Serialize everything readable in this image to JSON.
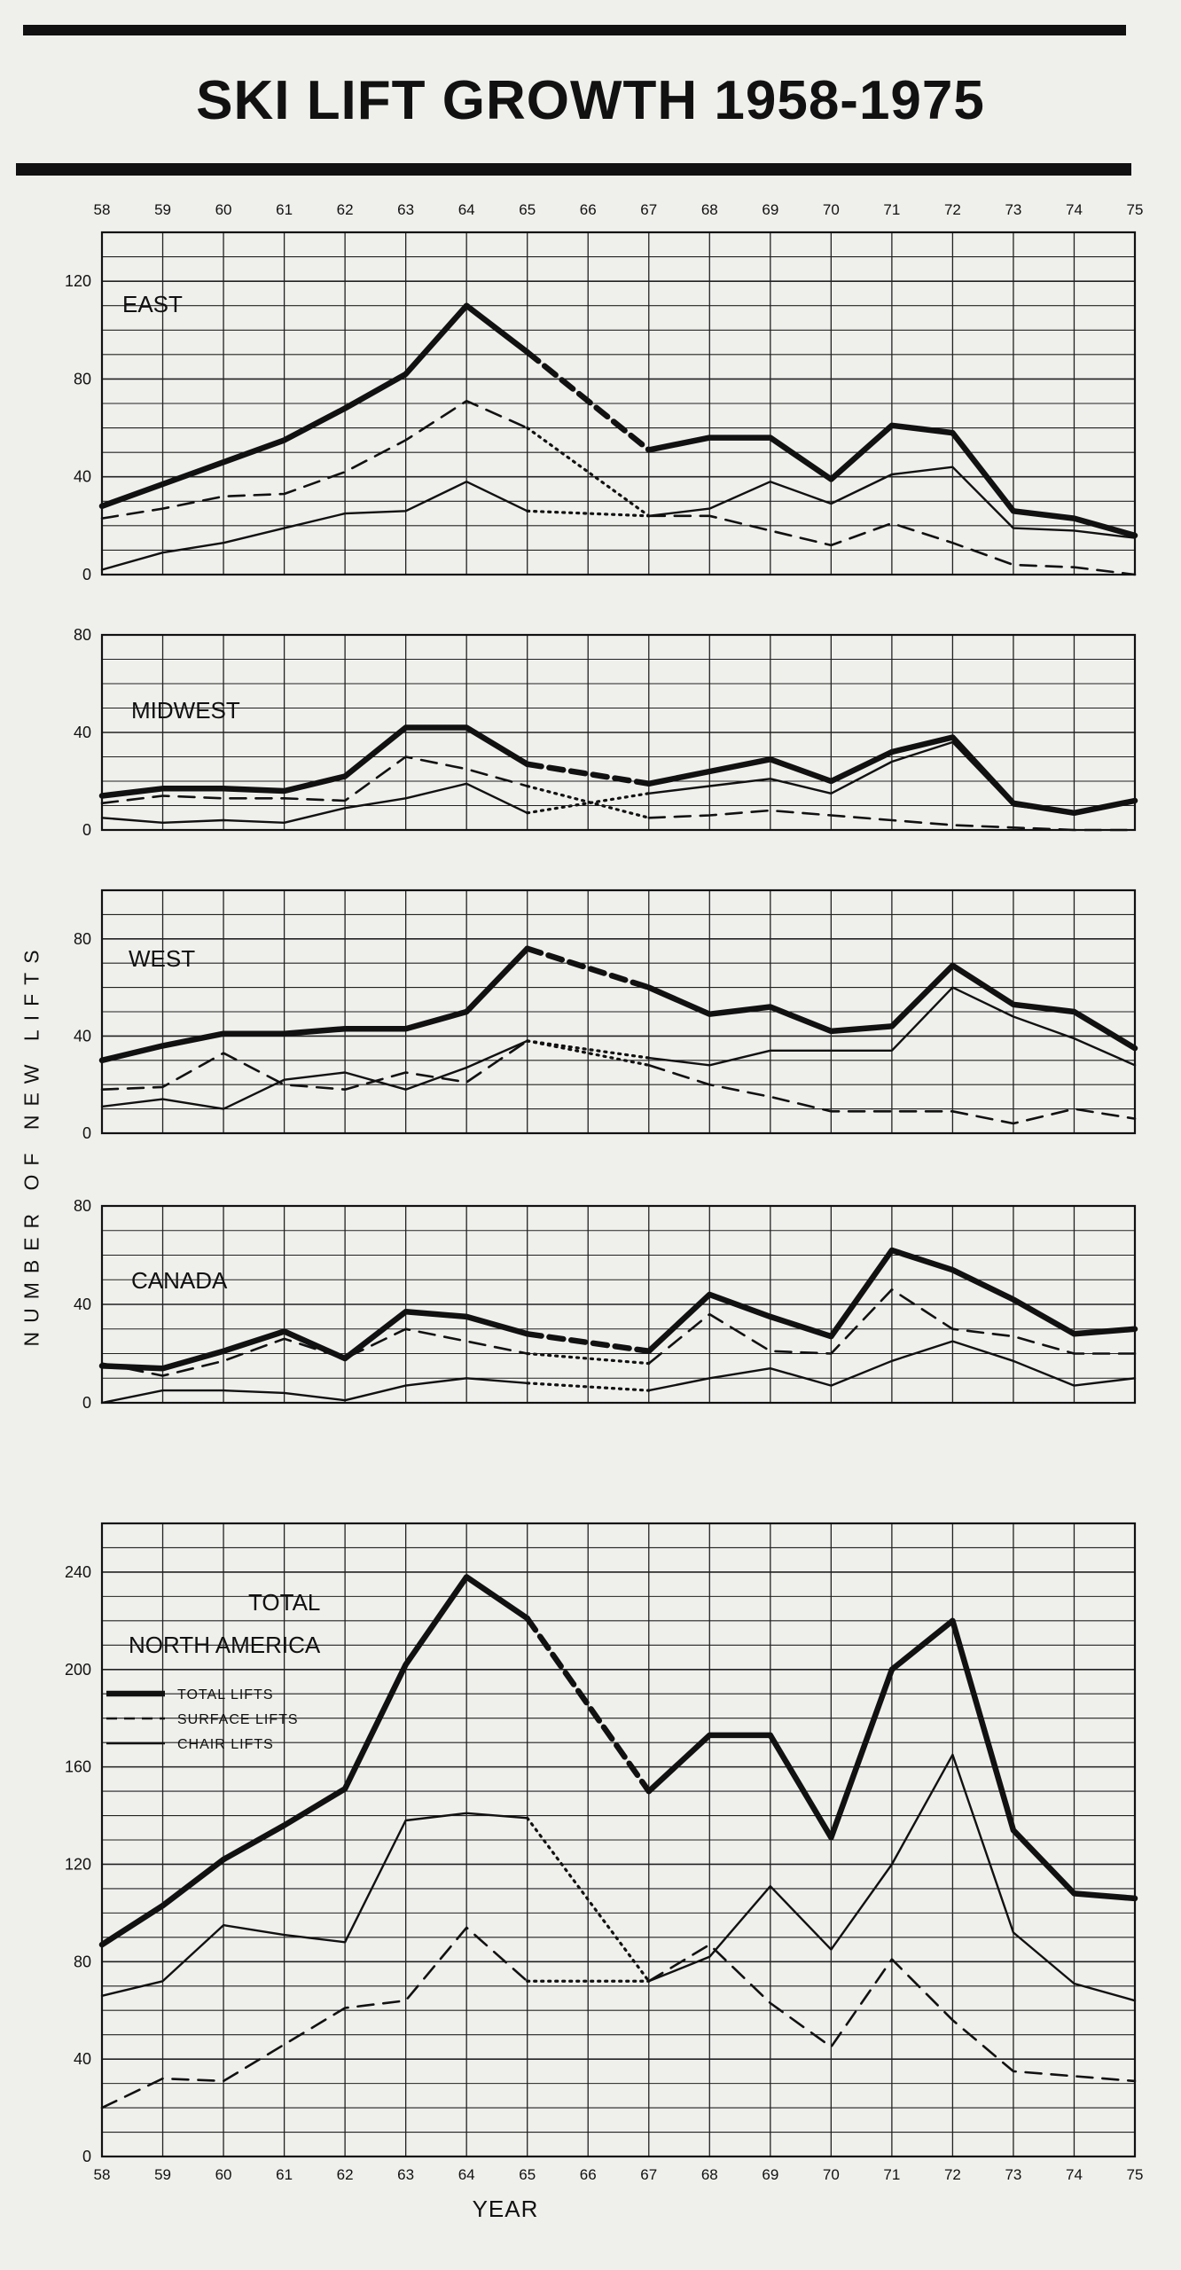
{
  "title": "SKI LIFT  GROWTH 1958-1975",
  "ylabel": "NUMBER   OF   NEW   LIFTS",
  "xlabel": "YEAR",
  "colors": {
    "ink": "#111111",
    "paper": "#efefec",
    "grid": "#222222"
  },
  "chart_data": [
    {
      "type": "line",
      "title": "EAST",
      "x": [
        "58",
        "59",
        "60",
        "61",
        "62",
        "63",
        "64",
        "65",
        "66",
        "67",
        "68",
        "69",
        "70",
        "71",
        "72",
        "73",
        "74",
        "75"
      ],
      "ylim": [
        0,
        140
      ],
      "yticks": [
        "0",
        "40",
        "80",
        "120"
      ],
      "series": [
        {
          "name": "TOTAL LIFTS",
          "values": [
            28,
            37,
            46,
            55,
            68,
            82,
            110,
            91,
            null,
            51,
            56,
            56,
            39,
            61,
            58,
            26,
            23,
            16
          ]
        },
        {
          "name": "SURFACE LIFTS",
          "values": [
            23,
            27,
            32,
            33,
            42,
            55,
            71,
            60,
            null,
            24,
            24,
            18,
            12,
            21,
            13,
            4,
            3,
            0
          ]
        },
        {
          "name": "CHAIR LIFTS",
          "values": [
            2,
            9,
            13,
            19,
            25,
            26,
            38,
            26,
            null,
            24,
            27,
            38,
            29,
            41,
            44,
            19,
            18,
            15
          ]
        }
      ]
    },
    {
      "type": "line",
      "title": "MIDWEST",
      "x": [
        "58",
        "59",
        "60",
        "61",
        "62",
        "63",
        "64",
        "65",
        "66",
        "67",
        "68",
        "69",
        "70",
        "71",
        "72",
        "73",
        "74",
        "75"
      ],
      "ylim": [
        0,
        80
      ],
      "yticks": [
        "0",
        "40",
        "80"
      ],
      "series": [
        {
          "name": "TOTAL LIFTS",
          "values": [
            14,
            17,
            17,
            16,
            22,
            42,
            42,
            27,
            null,
            19,
            24,
            29,
            20,
            32,
            38,
            11,
            7,
            12
          ]
        },
        {
          "name": "SURFACE LIFTS",
          "values": [
            11,
            14,
            13,
            13,
            12,
            30,
            25,
            18,
            null,
            5,
            6,
            8,
            6,
            4,
            2,
            1,
            0,
            0
          ]
        },
        {
          "name": "CHAIR LIFTS",
          "values": [
            5,
            3,
            4,
            3,
            9,
            13,
            19,
            7,
            null,
            15,
            18,
            21,
            15,
            28,
            36,
            10,
            7,
            12
          ]
        }
      ]
    },
    {
      "type": "line",
      "title": "WEST",
      "x": [
        "58",
        "59",
        "60",
        "61",
        "62",
        "63",
        "64",
        "65",
        "66",
        "67",
        "68",
        "69",
        "70",
        "71",
        "72",
        "73",
        "74",
        "75"
      ],
      "ylim": [
        0,
        100
      ],
      "yticks": [
        "0",
        "40",
        "80"
      ],
      "series": [
        {
          "name": "TOTAL LIFTS",
          "values": [
            30,
            36,
            41,
            41,
            43,
            43,
            50,
            76,
            null,
            60,
            49,
            52,
            42,
            44,
            69,
            53,
            50,
            35
          ]
        },
        {
          "name": "SURFACE LIFTS",
          "values": [
            18,
            19,
            33,
            20,
            18,
            25,
            21,
            38,
            null,
            28,
            20,
            15,
            9,
            9,
            9,
            4,
            10,
            6
          ]
        },
        {
          "name": "CHAIR LIFTS",
          "values": [
            11,
            14,
            10,
            22,
            25,
            18,
            27,
            38,
            null,
            31,
            28,
            34,
            34,
            34,
            60,
            48,
            39,
            28
          ]
        }
      ]
    },
    {
      "type": "line",
      "title": "CANADA",
      "x": [
        "58",
        "59",
        "60",
        "61",
        "62",
        "63",
        "64",
        "65",
        "66",
        "67",
        "68",
        "69",
        "70",
        "71",
        "72",
        "73",
        "74",
        "75"
      ],
      "ylim": [
        0,
        80
      ],
      "yticks": [
        "0",
        "40",
        "80"
      ],
      "series": [
        {
          "name": "TOTAL LIFTS",
          "values": [
            15,
            14,
            21,
            29,
            18,
            37,
            35,
            28,
            null,
            21,
            44,
            35,
            27,
            62,
            54,
            42,
            28,
            30
          ]
        },
        {
          "name": "SURFACE LIFTS",
          "values": [
            16,
            11,
            17,
            26,
            18,
            30,
            25,
            20,
            null,
            16,
            36,
            21,
            20,
            46,
            30,
            27,
            20,
            20
          ]
        },
        {
          "name": "CHAIR LIFTS",
          "values": [
            0,
            5,
            5,
            4,
            1,
            7,
            10,
            8,
            null,
            5,
            10,
            14,
            7,
            17,
            25,
            17,
            7,
            10
          ]
        }
      ]
    },
    {
      "type": "line",
      "title": "TOTAL\nNORTH      AMERICA",
      "title_lines": [
        "TOTAL",
        "NORTH      AMERICA"
      ],
      "x": [
        "58",
        "59",
        "60",
        "61",
        "62",
        "63",
        "64",
        "65",
        "66",
        "67",
        "68",
        "69",
        "70",
        "71",
        "72",
        "73",
        "74",
        "75"
      ],
      "ylim": [
        0,
        260
      ],
      "yticks": [
        "0",
        "40",
        "80",
        "120",
        "160",
        "200",
        "240"
      ],
      "legend": {
        "position": "top-left",
        "items": [
          "TOTAL LIFTS",
          "SURFACE LIFTS",
          "CHAIR LIFTS"
        ]
      },
      "series": [
        {
          "name": "TOTAL LIFTS",
          "values": [
            87,
            103,
            122,
            136,
            151,
            202,
            238,
            221,
            null,
            150,
            173,
            173,
            131,
            200,
            220,
            134,
            108,
            106
          ]
        },
        {
          "name": "SURFACE LIFTS",
          "values": [
            20,
            32,
            31,
            46,
            61,
            64,
            94,
            72,
            null,
            72,
            87,
            63,
            45,
            81,
            56,
            35,
            33,
            31
          ]
        },
        {
          "name": "CHAIR LIFTS",
          "values": [
            66,
            72,
            95,
            91,
            88,
            138,
            141,
            139,
            null,
            72,
            82,
            111,
            85,
            120,
            165,
            92,
            71,
            64
          ]
        }
      ]
    }
  ]
}
